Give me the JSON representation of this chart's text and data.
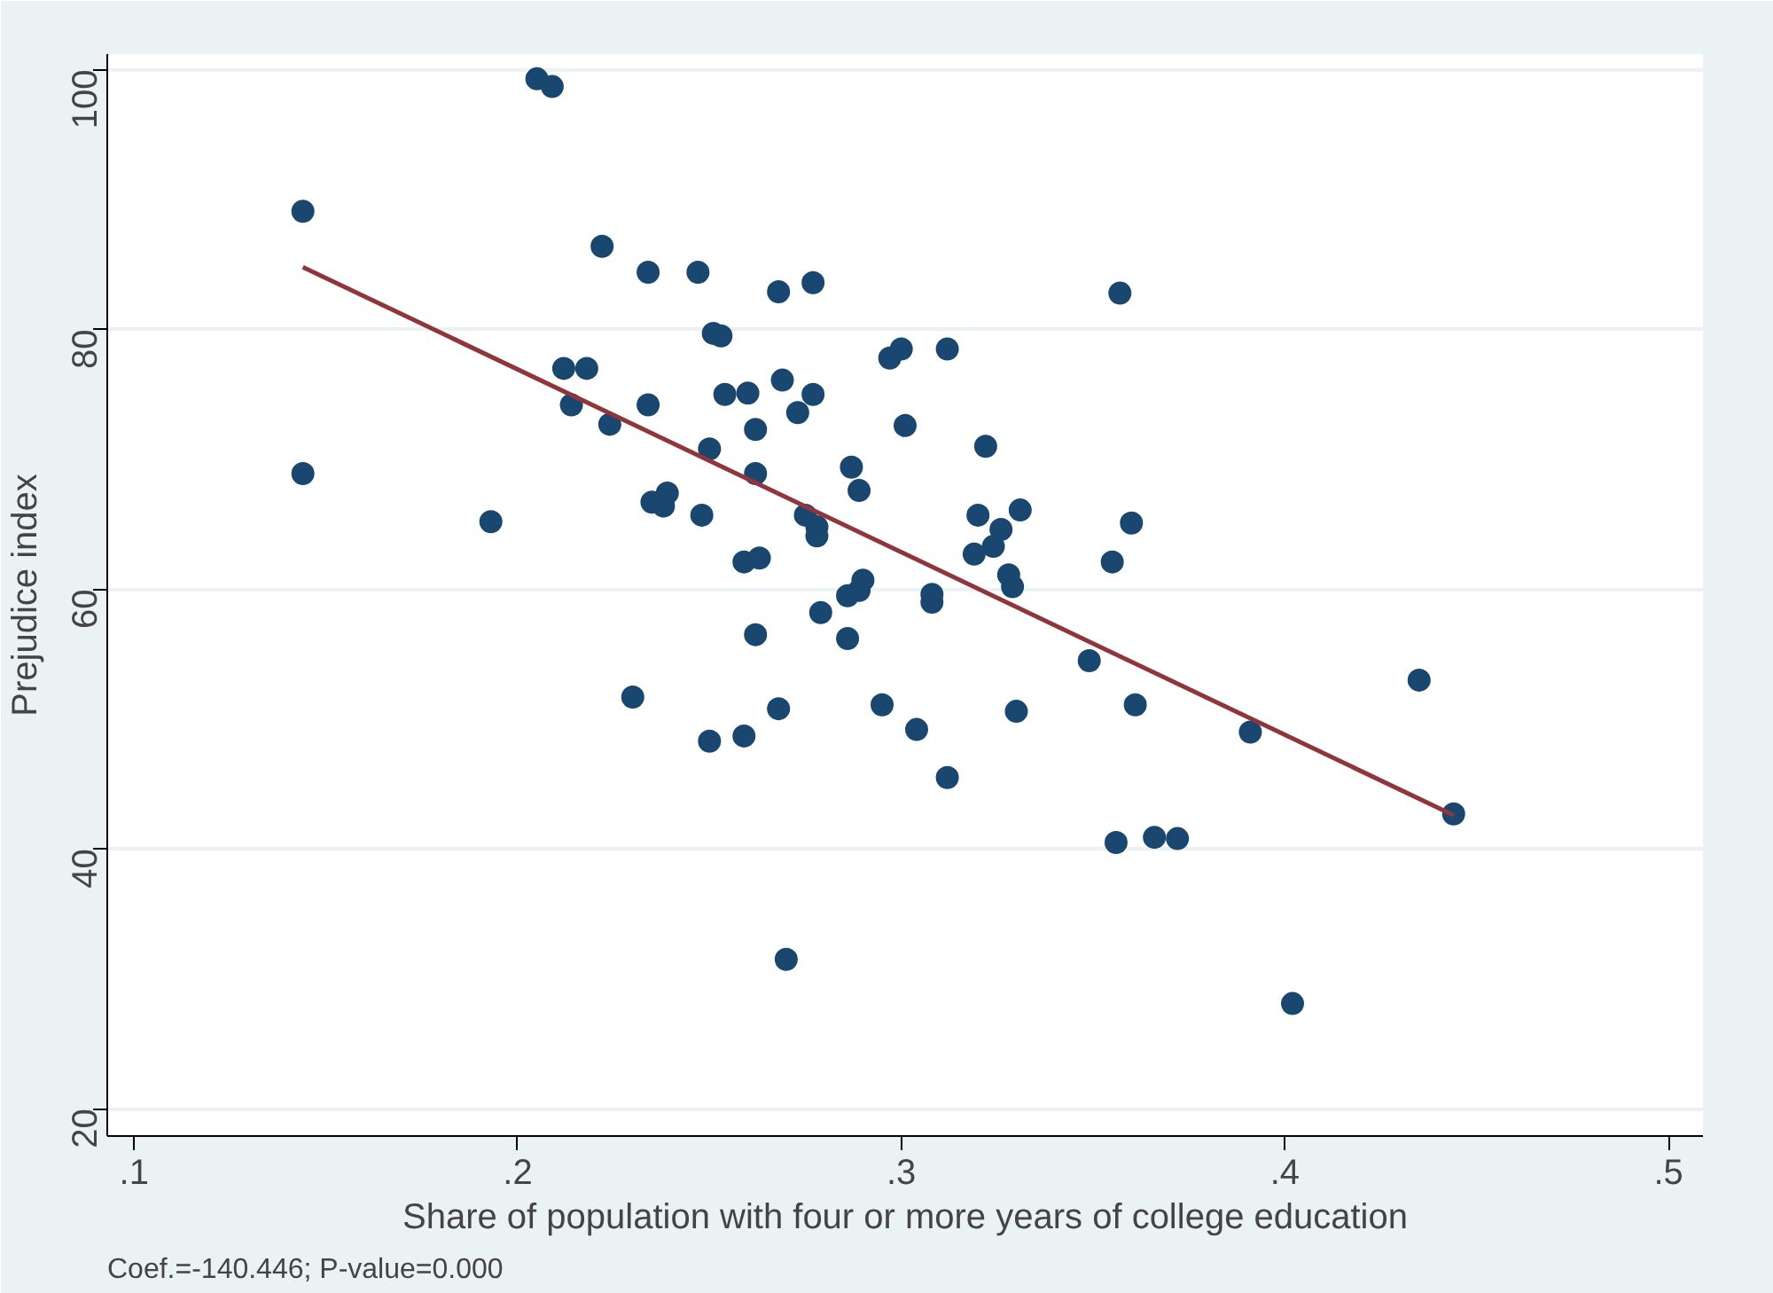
{
  "chart_data": {
    "type": "scatter",
    "xlabel": "Share of population with four or more years of college education",
    "ylabel": "Prejudice index",
    "xlim": [
      0.093,
      0.509
    ],
    "ylim": [
      17.9,
      101.2
    ],
    "xticks": [
      {
        "value": 0.1,
        "label": ".1"
      },
      {
        "value": 0.2,
        "label": ".2"
      },
      {
        "value": 0.3,
        "label": ".3"
      },
      {
        "value": 0.4,
        "label": ".4"
      },
      {
        "value": 0.5,
        "label": ".5"
      }
    ],
    "yticks": [
      20,
      40,
      60,
      80,
      100
    ],
    "grid": "y",
    "marker": "circle",
    "annotations": [
      "Coef.=-140.446; P-value=0.000"
    ],
    "series": [
      {
        "color": "#1a476f",
        "x": [
          0.144,
          0.144,
          0.193,
          0.205,
          0.209,
          0.222,
          0.234,
          0.247,
          0.212,
          0.218,
          0.214,
          0.224,
          0.234,
          0.251,
          0.253,
          0.254,
          0.26,
          0.269,
          0.277,
          0.273,
          0.262,
          0.25,
          0.262,
          0.235,
          0.239,
          0.238,
          0.248,
          0.275,
          0.278,
          0.278,
          0.259,
          0.263,
          0.279,
          0.286,
          0.29,
          0.289,
          0.262,
          0.286,
          0.268,
          0.277,
          0.297,
          0.3,
          0.312,
          0.301,
          0.322,
          0.287,
          0.289,
          0.32,
          0.331,
          0.326,
          0.319,
          0.324,
          0.328,
          0.329,
          0.36,
          0.355,
          0.357,
          0.308,
          0.308,
          0.349,
          0.295,
          0.304,
          0.33,
          0.361,
          0.312,
          0.391,
          0.435,
          0.444,
          0.356,
          0.366,
          0.372,
          0.402,
          0.23,
          0.25,
          0.259,
          0.268,
          0.27
        ],
        "values": [
          89.1,
          68.9,
          65.2,
          99.3,
          98.7,
          86.4,
          84.4,
          84.4,
          77.0,
          77.0,
          74.2,
          72.7,
          74.2,
          79.7,
          79.5,
          75.0,
          75.1,
          76.1,
          75.0,
          73.6,
          72.3,
          70.8,
          68.9,
          66.7,
          67.4,
          66.4,
          65.7,
          65.7,
          64.8,
          64.1,
          62.1,
          62.4,
          58.2,
          59.5,
          60.7,
          59.9,
          56.5,
          56.2,
          82.9,
          83.6,
          77.8,
          78.5,
          78.5,
          72.6,
          71.0,
          69.4,
          67.6,
          65.7,
          66.1,
          64.6,
          62.7,
          63.3,
          61.1,
          60.2,
          65.1,
          62.1,
          82.8,
          59.6,
          59.0,
          54.5,
          51.1,
          49.2,
          50.6,
          51.1,
          45.5,
          49.0,
          53.0,
          42.7,
          40.5,
          40.9,
          40.8,
          28.1,
          51.7,
          48.3,
          48.7,
          50.8,
          31.5
        ]
      },
      {
        "type": "line",
        "color": "#90353b",
        "marker": "none",
        "x": [
          0.144,
          0.444
        ],
        "values": [
          84.8,
          42.6
        ]
      }
    ]
  }
}
